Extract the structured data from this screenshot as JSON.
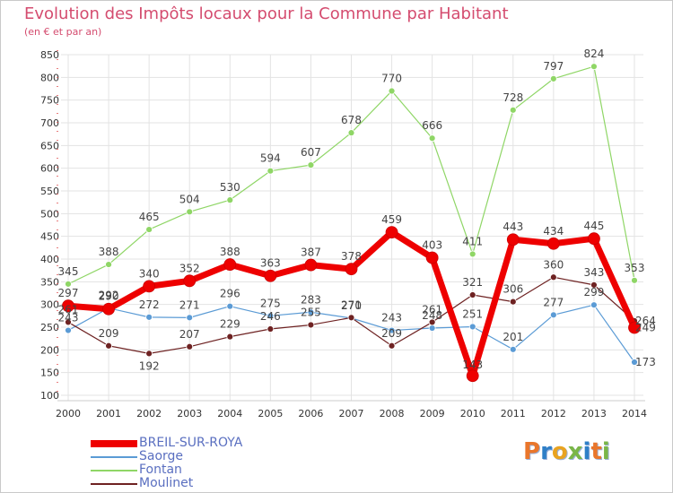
{
  "title": "Evolution des Impôts locaux pour la Commune par Habitant",
  "subtitle": "(en € et par an)",
  "logo_letters": [
    "P",
    "r",
    "o",
    "x",
    "i",
    "t",
    "i"
  ],
  "logo_colors": [
    "#e9762b",
    "#2f7fc7",
    "#e9a320",
    "#7ab648",
    "#2f7fc7",
    "#e9762b",
    "#7ab648"
  ],
  "chart_data": {
    "type": "line",
    "title": "Evolution des Impôts locaux pour la Commune par Habitant",
    "ylabel": "(en € et par an)",
    "xlabel": "",
    "ylim": [
      100,
      850
    ],
    "yticks": [
      100,
      150,
      200,
      250,
      300,
      350,
      400,
      450,
      500,
      550,
      600,
      650,
      700,
      750,
      800,
      850
    ],
    "x": [
      "2000",
      "2001",
      "2002",
      "2003",
      "2004",
      "2005",
      "2006",
      "2007",
      "2008",
      "2009",
      "2010",
      "2011",
      "2012",
      "2013",
      "2014"
    ],
    "grid": true,
    "legend_position": "bottom-left",
    "series": [
      {
        "name": "Fontan",
        "color": "#8fd666",
        "width": 1.2,
        "marker": 3.5,
        "values": [
          345,
          388,
          465,
          504,
          530,
          594,
          607,
          678,
          770,
          666,
          411,
          728,
          797,
          824,
          353
        ],
        "label_pos": [
          "above",
          "above",
          "above",
          "above",
          "above",
          "above",
          "above",
          "above",
          "above",
          "above",
          "above",
          "above",
          "above",
          "above",
          "above"
        ]
      },
      {
        "name": "Saorge",
        "color": "#5b9bd5",
        "width": 1.2,
        "marker": 3.5,
        "values": [
          243,
          292,
          272,
          271,
          296,
          275,
          283,
          270,
          243,
          248,
          251,
          201,
          277,
          299,
          173
        ],
        "label_pos": [
          "above",
          "above",
          "above",
          "above",
          "above",
          "above",
          "above",
          "above",
          "above",
          "above",
          "above",
          "above",
          "above",
          "above",
          "right"
        ]
      },
      {
        "name": "Moulinet",
        "color": "#6e2222",
        "width": 1.2,
        "marker": 3.5,
        "values": [
          261,
          209,
          192,
          207,
          229,
          246,
          255,
          271,
          209,
          261,
          321,
          306,
          360,
          343,
          264
        ],
        "label_pos": [
          "above",
          "above",
          "below",
          "above",
          "above",
          "above",
          "above",
          "above",
          "above",
          "above",
          "above",
          "above",
          "above",
          "above",
          "right"
        ]
      },
      {
        "name": "BREIL-SUR-ROYA",
        "color": "#ee0000",
        "width": 7,
        "marker": 6.5,
        "values": [
          297,
          290,
          340,
          352,
          388,
          363,
          387,
          378,
          459,
          403,
          143,
          443,
          434,
          445,
          249
        ],
        "label_pos": [
          "above",
          "above",
          "above",
          "above",
          "above",
          "above",
          "above",
          "above",
          "above",
          "above",
          "inside",
          "above",
          "above",
          "above",
          "right"
        ]
      }
    ],
    "legend": [
      "BREIL-SUR-ROYA",
      "Saorge",
      "Fontan",
      "Moulinet"
    ]
  }
}
